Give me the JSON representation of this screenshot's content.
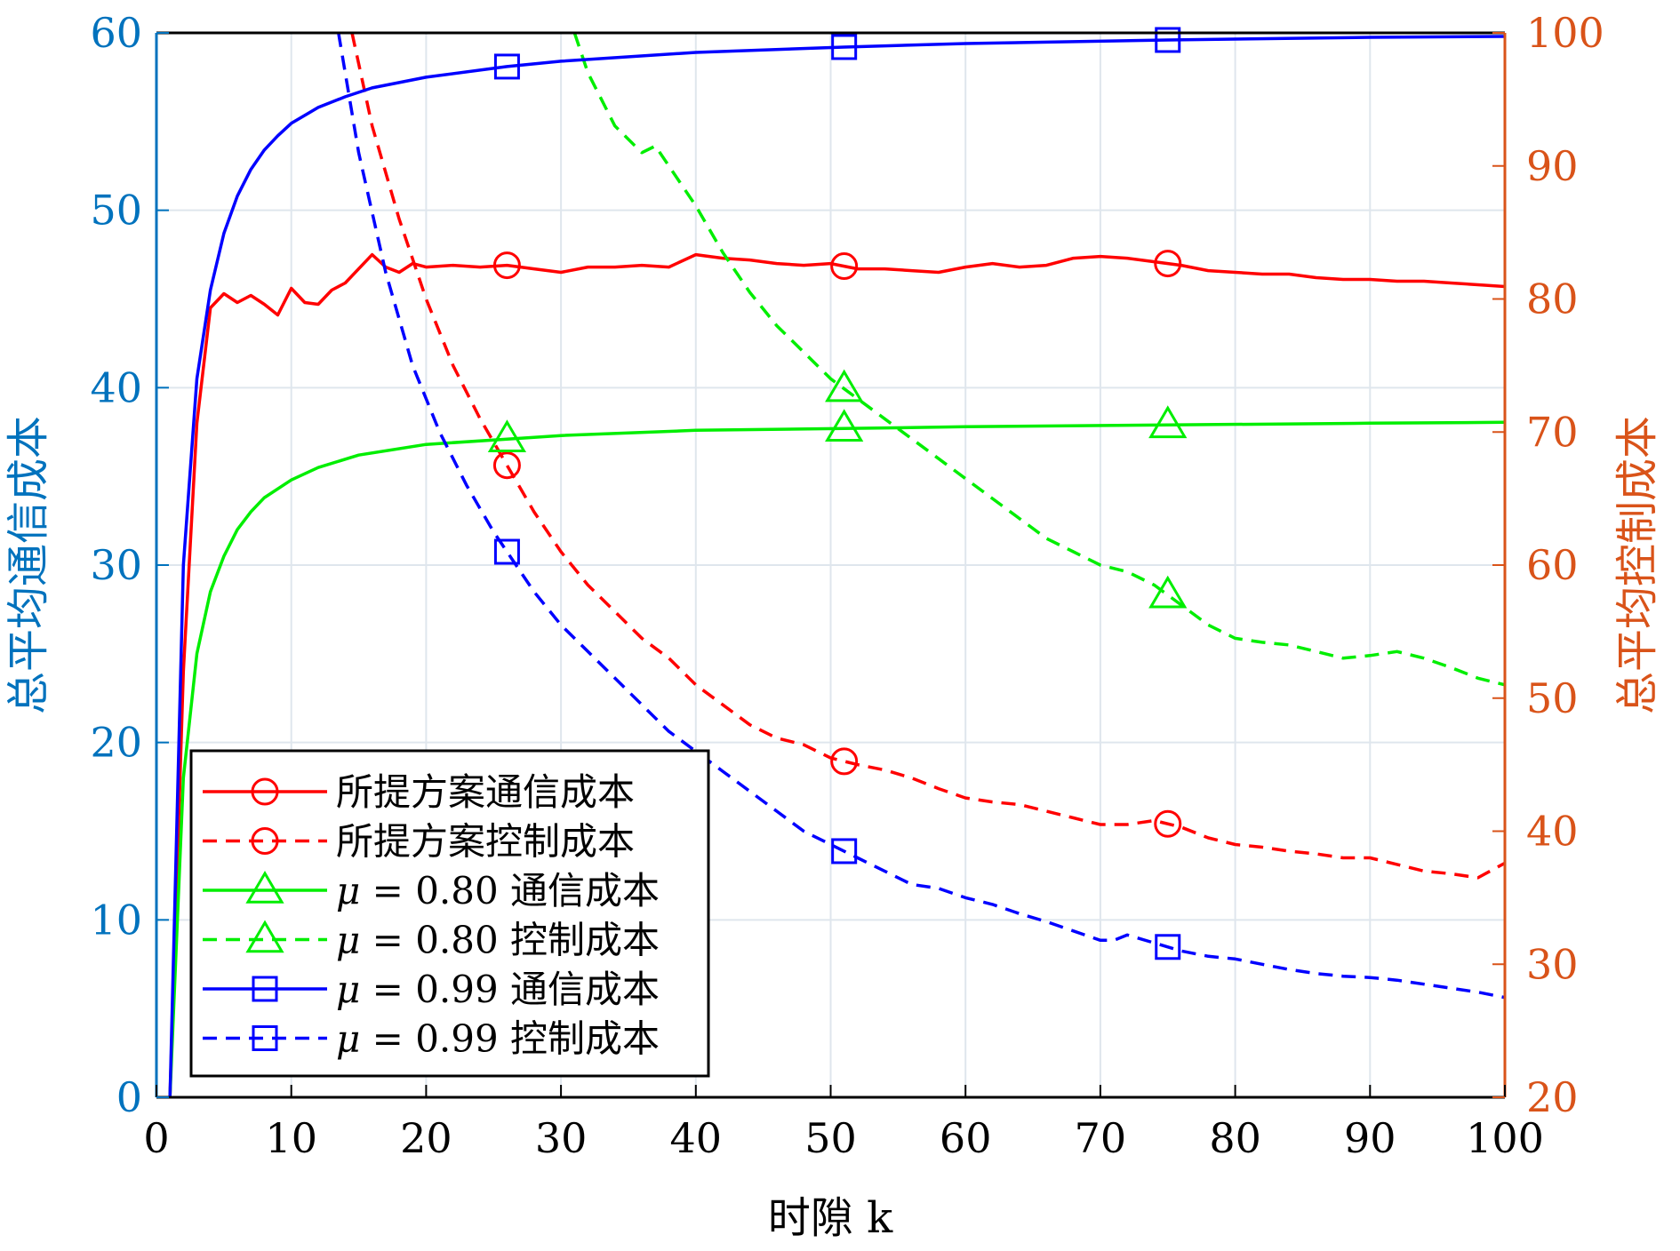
{
  "chart_data": {
    "type": "line",
    "xlabel": "时隙 k",
    "ylabel_left": "总平均通信成本",
    "ylabel_right": "总平均控制成本",
    "xlim": [
      0,
      100
    ],
    "ylim_left": [
      0,
      60
    ],
    "ylim_right": [
      20,
      100
    ],
    "xticks": [
      0,
      10,
      20,
      30,
      40,
      50,
      60,
      70,
      80,
      90,
      100
    ],
    "yticks_left": [
      0,
      10,
      20,
      30,
      40,
      50,
      60
    ],
    "yticks_right": [
      20,
      30,
      40,
      50,
      60,
      70,
      80,
      90,
      100
    ],
    "grid": true,
    "legend_position": "lower-left",
    "colors": {
      "left_axis": "#0072BD",
      "right_axis": "#D95319",
      "red": "#FF0000",
      "green": "#00EE00",
      "blue": "#0000FF",
      "grid": "#DFE6ED"
    },
    "series": [
      {
        "name": "所提方案通信成本",
        "axis": "left",
        "color": "#FF0000",
        "dash": "solid",
        "marker": "circle",
        "markers_at": [
          26,
          51,
          75
        ],
        "x": [
          1,
          2,
          3,
          4,
          5,
          6,
          7,
          8,
          9,
          10,
          11,
          12,
          13,
          14,
          15,
          16,
          17,
          18,
          19,
          20,
          22,
          24,
          26,
          28,
          30,
          32,
          34,
          36,
          38,
          40,
          42,
          44,
          46,
          48,
          50,
          52,
          54,
          56,
          58,
          60,
          62,
          64,
          66,
          68,
          70,
          72,
          74,
          76,
          78,
          80,
          82,
          84,
          86,
          88,
          90,
          92,
          94,
          96,
          98,
          100
        ],
        "y": [
          0,
          24,
          38,
          44.5,
          45.3,
          44.8,
          45.2,
          44.7,
          44.1,
          45.6,
          44.8,
          44.7,
          45.5,
          45.9,
          46.7,
          47.5,
          46.8,
          46.5,
          47,
          46.8,
          46.9,
          46.8,
          46.9,
          46.7,
          46.5,
          46.8,
          46.8,
          46.9,
          46.8,
          47.5,
          47.3,
          47.2,
          47,
          46.9,
          47,
          46.7,
          46.7,
          46.6,
          46.5,
          46.8,
          47,
          46.8,
          46.9,
          47.3,
          47.4,
          47.3,
          47.1,
          46.9,
          46.6,
          46.5,
          46.4,
          46.4,
          46.2,
          46.1,
          46.1,
          46,
          46,
          45.9,
          45.8,
          45.7
        ]
      },
      {
        "name": "所提方案控制成本",
        "axis": "right",
        "color": "#FF0000",
        "dash": "dashed",
        "marker": "circle",
        "markers_at": [
          26,
          51,
          75
        ],
        "x": [
          14.5,
          16,
          18,
          20,
          22,
          24,
          26,
          28,
          30,
          32,
          34,
          36,
          38,
          40,
          42,
          44,
          46,
          48,
          50,
          52,
          54,
          56,
          58,
          60,
          62,
          64,
          66,
          68,
          70,
          72,
          74,
          76,
          78,
          80,
          82,
          84,
          86,
          88,
          90,
          92,
          94,
          96,
          98,
          100
        ],
        "y": [
          100,
          93,
          86,
          80,
          75,
          71,
          67.5,
          64,
          61,
          58.5,
          56.5,
          54.5,
          53,
          51,
          49.5,
          48,
          47,
          46.5,
          45.5,
          45,
          44.6,
          44,
          43.2,
          42.5,
          42.2,
          42,
          41.5,
          41,
          40.5,
          40.5,
          40.8,
          40.3,
          39.5,
          39,
          38.8,
          38.5,
          38.3,
          38,
          38,
          37.5,
          37,
          36.8,
          36.5,
          37.6
        ]
      },
      {
        "name": "μ = 0.80 通信成本",
        "axis": "left",
        "color": "#00EE00",
        "dash": "solid",
        "marker": "triangle",
        "markers_at": [
          26,
          51,
          75
        ],
        "x": [
          1,
          2,
          3,
          4,
          5,
          6,
          7,
          8,
          10,
          12,
          15,
          20,
          26,
          30,
          40,
          51,
          60,
          75,
          90,
          100
        ],
        "y": [
          0,
          18,
          25,
          28.5,
          30.5,
          32,
          33,
          33.8,
          34.8,
          35.5,
          36.2,
          36.8,
          37.1,
          37.3,
          37.6,
          37.7,
          37.8,
          37.9,
          38,
          38.05
        ]
      },
      {
        "name": "μ = 0.80 控制成本",
        "axis": "right",
        "color": "#00EE00",
        "dash": "dashed",
        "marker": "triangle",
        "markers_at": [
          51,
          75
        ],
        "x": [
          31,
          32,
          34,
          36,
          37,
          38,
          40,
          42,
          44,
          46,
          48,
          50,
          52,
          54,
          56,
          58,
          60,
          62,
          64,
          66,
          68,
          70,
          72,
          74,
          76,
          78,
          80,
          82,
          84,
          86,
          88,
          90,
          92,
          94,
          96,
          98,
          100
        ],
        "y": [
          100,
          97,
          93,
          91,
          91.5,
          90,
          87,
          83.5,
          80.5,
          78,
          76,
          74,
          72.5,
          71,
          69.5,
          68,
          66.5,
          65,
          63.5,
          62,
          61,
          60,
          59.5,
          58.5,
          57,
          55.5,
          54.5,
          54.2,
          54,
          53.5,
          53,
          53.2,
          53.5,
          53,
          52.3,
          51.5,
          51
        ]
      },
      {
        "name": "μ = 0.99 通信成本",
        "axis": "left",
        "color": "#0000FF",
        "dash": "solid",
        "marker": "square",
        "markers_at": [
          26,
          51,
          75
        ],
        "x": [
          1,
          2,
          3,
          4,
          5,
          6,
          7,
          8,
          9,
          10,
          12,
          14,
          16,
          18,
          20,
          26,
          30,
          40,
          51,
          60,
          75,
          90,
          100
        ],
        "y": [
          0,
          30,
          40.5,
          45.5,
          48.7,
          50.8,
          52.3,
          53.4,
          54.2,
          54.9,
          55.8,
          56.4,
          56.9,
          57.2,
          57.5,
          58.1,
          58.4,
          58.9,
          59.2,
          59.4,
          59.6,
          59.75,
          59.8
        ]
      },
      {
        "name": "μ = 0.99 控制成本",
        "axis": "right",
        "color": "#0000FF",
        "dash": "dashed",
        "marker": "square",
        "markers_at": [
          26,
          51,
          75
        ],
        "x": [
          13.5,
          15,
          17,
          19,
          21,
          23,
          25,
          26,
          28,
          30,
          32,
          34,
          36,
          38,
          40,
          42,
          44,
          46,
          48,
          50,
          52,
          54,
          56,
          58,
          60,
          62,
          64,
          66,
          68,
          70,
          71,
          72,
          74,
          76,
          78,
          80,
          82,
          84,
          86,
          88,
          90,
          92,
          94,
          96,
          98,
          100
        ],
        "y": [
          100,
          91,
          82,
          75,
          70,
          66,
          62.5,
          61,
          58,
          55.5,
          53.5,
          51.5,
          49.5,
          47.5,
          46,
          44.5,
          43,
          41.5,
          40,
          39,
          38,
          37,
          36,
          35.7,
          35,
          34.5,
          33.8,
          33.2,
          32.5,
          31.8,
          31.8,
          32.2,
          31.6,
          31,
          30.6,
          30.4,
          30,
          29.6,
          29.3,
          29.1,
          29,
          28.8,
          28.5,
          28.2,
          27.9,
          27.5
        ]
      }
    ]
  },
  "legend": {
    "items": [
      {
        "prefix": "",
        "label": "所提方案通信成本"
      },
      {
        "prefix": "",
        "label": "所提方案控制成本"
      },
      {
        "prefix": "μ",
        "label": " = 0.80 通信成本"
      },
      {
        "prefix": "μ",
        "label": " = 0.80 控制成本"
      },
      {
        "prefix": "μ",
        "label": " = 0.99 通信成本"
      },
      {
        "prefix": "μ",
        "label": " = 0.99 控制成本"
      }
    ]
  }
}
